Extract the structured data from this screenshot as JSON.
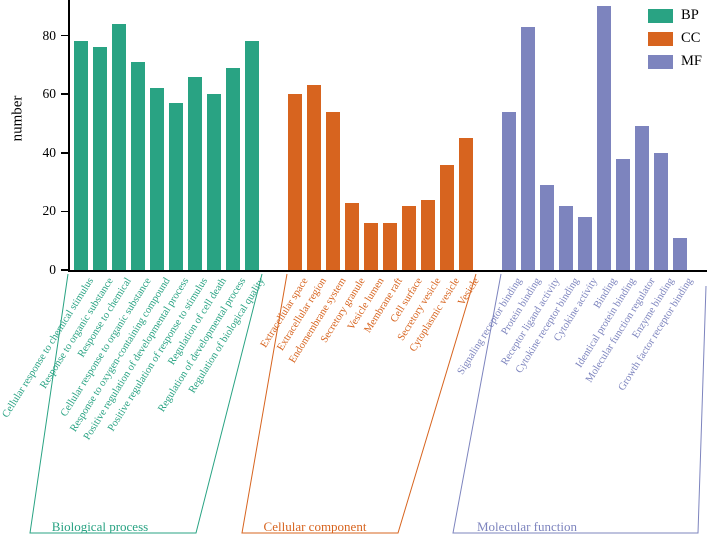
{
  "chart_data": {
    "type": "bar",
    "title": "",
    "xlabel": "",
    "ylabel": "number",
    "ylim": [
      0,
      90
    ],
    "yticks": [
      0,
      20,
      40,
      60,
      80
    ],
    "grid": false,
    "legend_position": "top-right",
    "groups": [
      {
        "name": "Biological process",
        "legend_label": "BP",
        "color": "#29a383",
        "categories": [
          "Cellular response to chemical stimulus",
          "Response to organic substance",
          "Response to chemical",
          "Cellular response to organic substance",
          "Response to oxygen-containing compound",
          "Positive regulation of developmental process",
          "Positive regulation of response to stimulus",
          "Regulation of cell death",
          "Regulation of developmental process",
          "Regulation of biological quality"
        ],
        "values": [
          78,
          76,
          84,
          71,
          62,
          57,
          66,
          60,
          69,
          78
        ]
      },
      {
        "name": "Cellular component",
        "legend_label": "CC",
        "color": "#d7641f",
        "categories": [
          "Extracellular space",
          "Extracellular region",
          "Endomembrane system",
          "Secretory granule",
          "Vesicle lumen",
          "Membrane raft",
          "Cell surface",
          "Secretory vesicle",
          "Cytoplasmic vesicle",
          "Vesicle"
        ],
        "values": [
          60,
          63,
          54,
          23,
          16,
          16,
          22,
          24,
          36,
          45
        ]
      },
      {
        "name": "Molecular function",
        "legend_label": "MF",
        "color": "#7d84be",
        "categories": [
          "Signaling receptor binding",
          "Protein binding",
          "Receptor ligand activity",
          "Cytokine receptor binding",
          "Cytokine activity",
          "Binding",
          "Identical protein binding",
          "Molecular function regulator",
          "Enzyme binding",
          "Growth factor receptor binding"
        ],
        "values": [
          54,
          83,
          29,
          22,
          18,
          90,
          38,
          49,
          40,
          11
        ]
      }
    ]
  }
}
